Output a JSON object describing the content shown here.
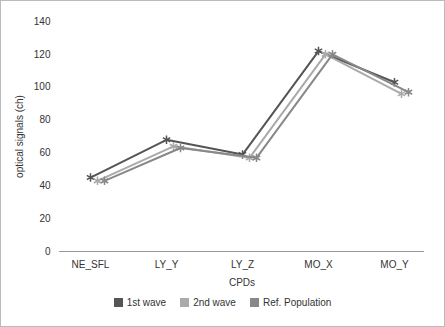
{
  "chart_data": {
    "type": "line",
    "xlabel": "CPDs",
    "ylabel": "optical signals (ch)",
    "categories": [
      "NE_SFL",
      "LY_Y",
      "LY_Z",
      "MO_X",
      "MO_Y"
    ],
    "series": [
      {
        "name": "1st wave",
        "color": "#555555",
        "marker": "asterisk",
        "values": [
          45,
          68,
          59,
          122,
          103
        ]
      },
      {
        "name": "2nd wave",
        "color": "#aaaaaa",
        "marker": "asterisk",
        "values": [
          43,
          64,
          57,
          120,
          96
        ]
      },
      {
        "name": "Ref. Population",
        "color": "#888888",
        "marker": "asterisk",
        "values": [
          43,
          63,
          57,
          120,
          97
        ]
      }
    ],
    "ylim": [
      0,
      140
    ],
    "yticks": [
      0,
      20,
      40,
      60,
      80,
      100,
      120,
      140
    ],
    "grid": false,
    "legend": "bottom"
  }
}
